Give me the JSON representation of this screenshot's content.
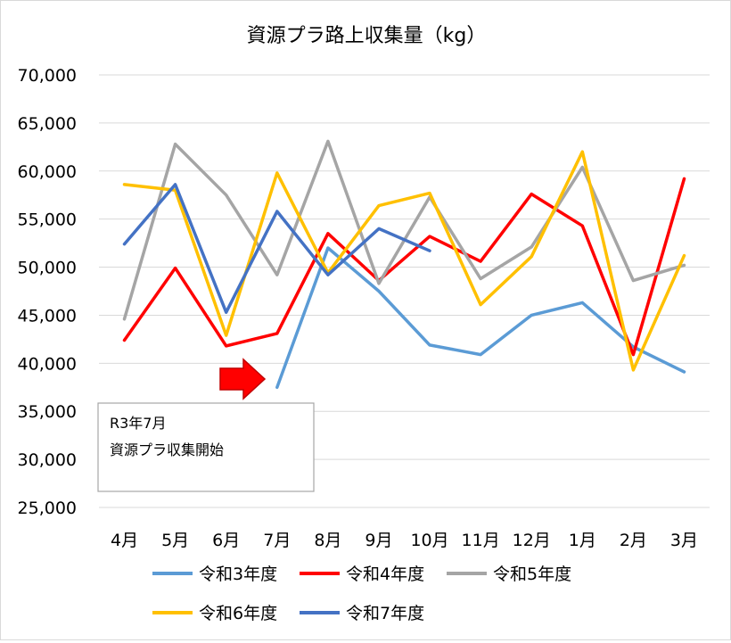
{
  "chart_data": {
    "type": "line",
    "title": "資源プラ路上収集量（kg）",
    "categories": [
      "4月",
      "5月",
      "6月",
      "7月",
      "8月",
      "9月",
      "10月",
      "11月",
      "12月",
      "1月",
      "2月",
      "3月"
    ],
    "ylim": [
      25000,
      70000
    ],
    "ytick_step": 5000,
    "y_tick_labels": [
      "25,000",
      "30,000",
      "35,000",
      "40,000",
      "45,000",
      "50,000",
      "55,000",
      "60,000",
      "65,000",
      "70,000"
    ],
    "grid": "horizontal",
    "legend_position": "bottom",
    "series": [
      {
        "name": "令和3年度",
        "color": "#5b9bd5",
        "values": [
          null,
          null,
          null,
          37500,
          52000,
          47500,
          41900,
          40900,
          45000,
          46300,
          41700,
          39100
        ]
      },
      {
        "name": "令和4年度",
        "color": "#ff0000",
        "values": [
          42400,
          49900,
          41800,
          43100,
          53500,
          48600,
          53200,
          50600,
          57600,
          54300,
          40900,
          59200
        ]
      },
      {
        "name": "令和5年度",
        "color": "#a5a5a5",
        "values": [
          44600,
          62800,
          57500,
          49200,
          63100,
          48300,
          57300,
          48800,
          52100,
          60400,
          48600,
          50200
        ]
      },
      {
        "name": "令和6年度",
        "color": "#ffc000",
        "values": [
          58600,
          58000,
          42900,
          59800,
          49400,
          56400,
          57700,
          46100,
          51100,
          62000,
          39300,
          51200
        ]
      },
      {
        "name": "令和7年度",
        "color": "#4472c4",
        "values": [
          52400,
          58600,
          45300,
          55800,
          49200,
          54000,
          51700,
          null,
          null,
          null,
          null,
          null
        ]
      }
    ],
    "annotation": {
      "lines": [
        "R3年7月",
        "資源プラ収集開始"
      ]
    },
    "arrow_color": "#ff0000"
  }
}
